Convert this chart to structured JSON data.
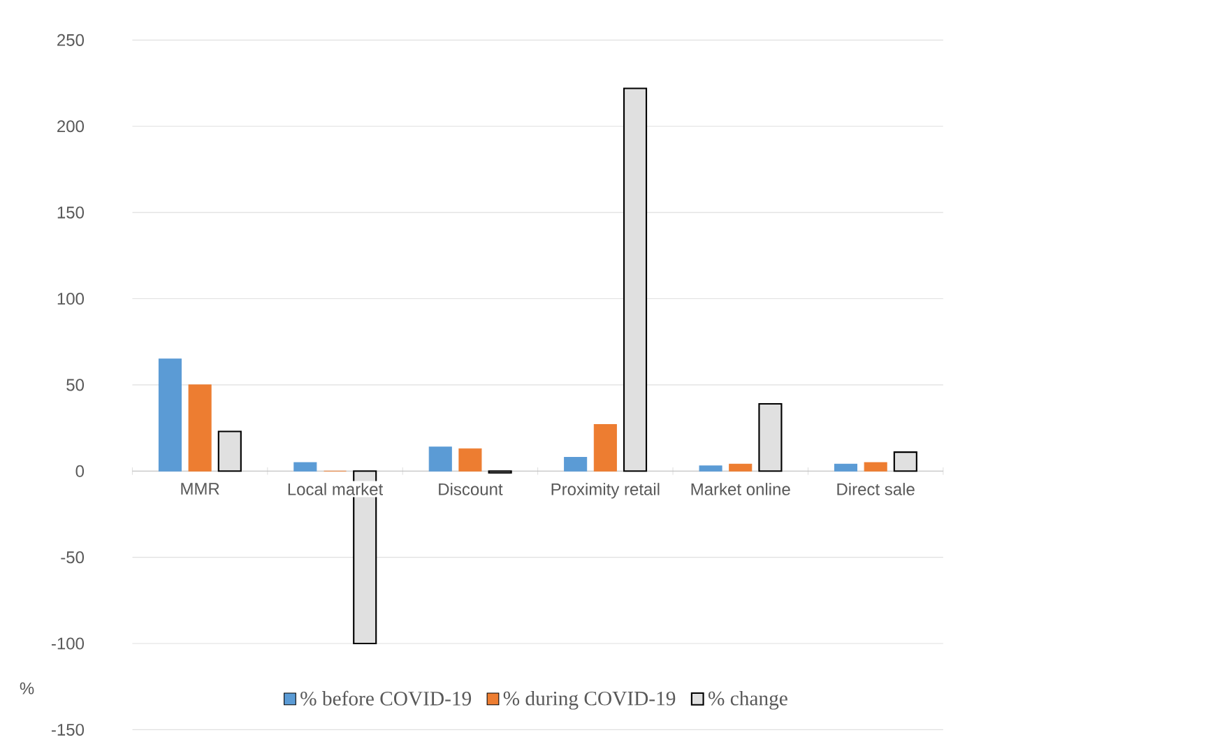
{
  "chart_data": {
    "type": "bar",
    "ylabel": "%",
    "categories": [
      "MMR",
      "Local market",
      "Discount",
      "Proximity retail",
      "Market online",
      "Direct sale"
    ],
    "series": [
      {
        "name": "% before COVID-19",
        "color": "#5b9bd5",
        "values": [
          65,
          5,
          14,
          8,
          3,
          4
        ]
      },
      {
        "name": "% during COVID-19",
        "color": "#ed7d31",
        "values": [
          50,
          0,
          13,
          27,
          4,
          5
        ]
      },
      {
        "name": "% change",
        "color": "#e0e0e0",
        "values": [
          23,
          -100,
          -1,
          222,
          39,
          11
        ]
      }
    ],
    "ylim": [
      -150,
      250
    ],
    "yticks": [
      -150,
      -100,
      -50,
      0,
      50,
      100,
      150,
      200,
      250
    ],
    "grid": "y",
    "legend": "bottom"
  }
}
